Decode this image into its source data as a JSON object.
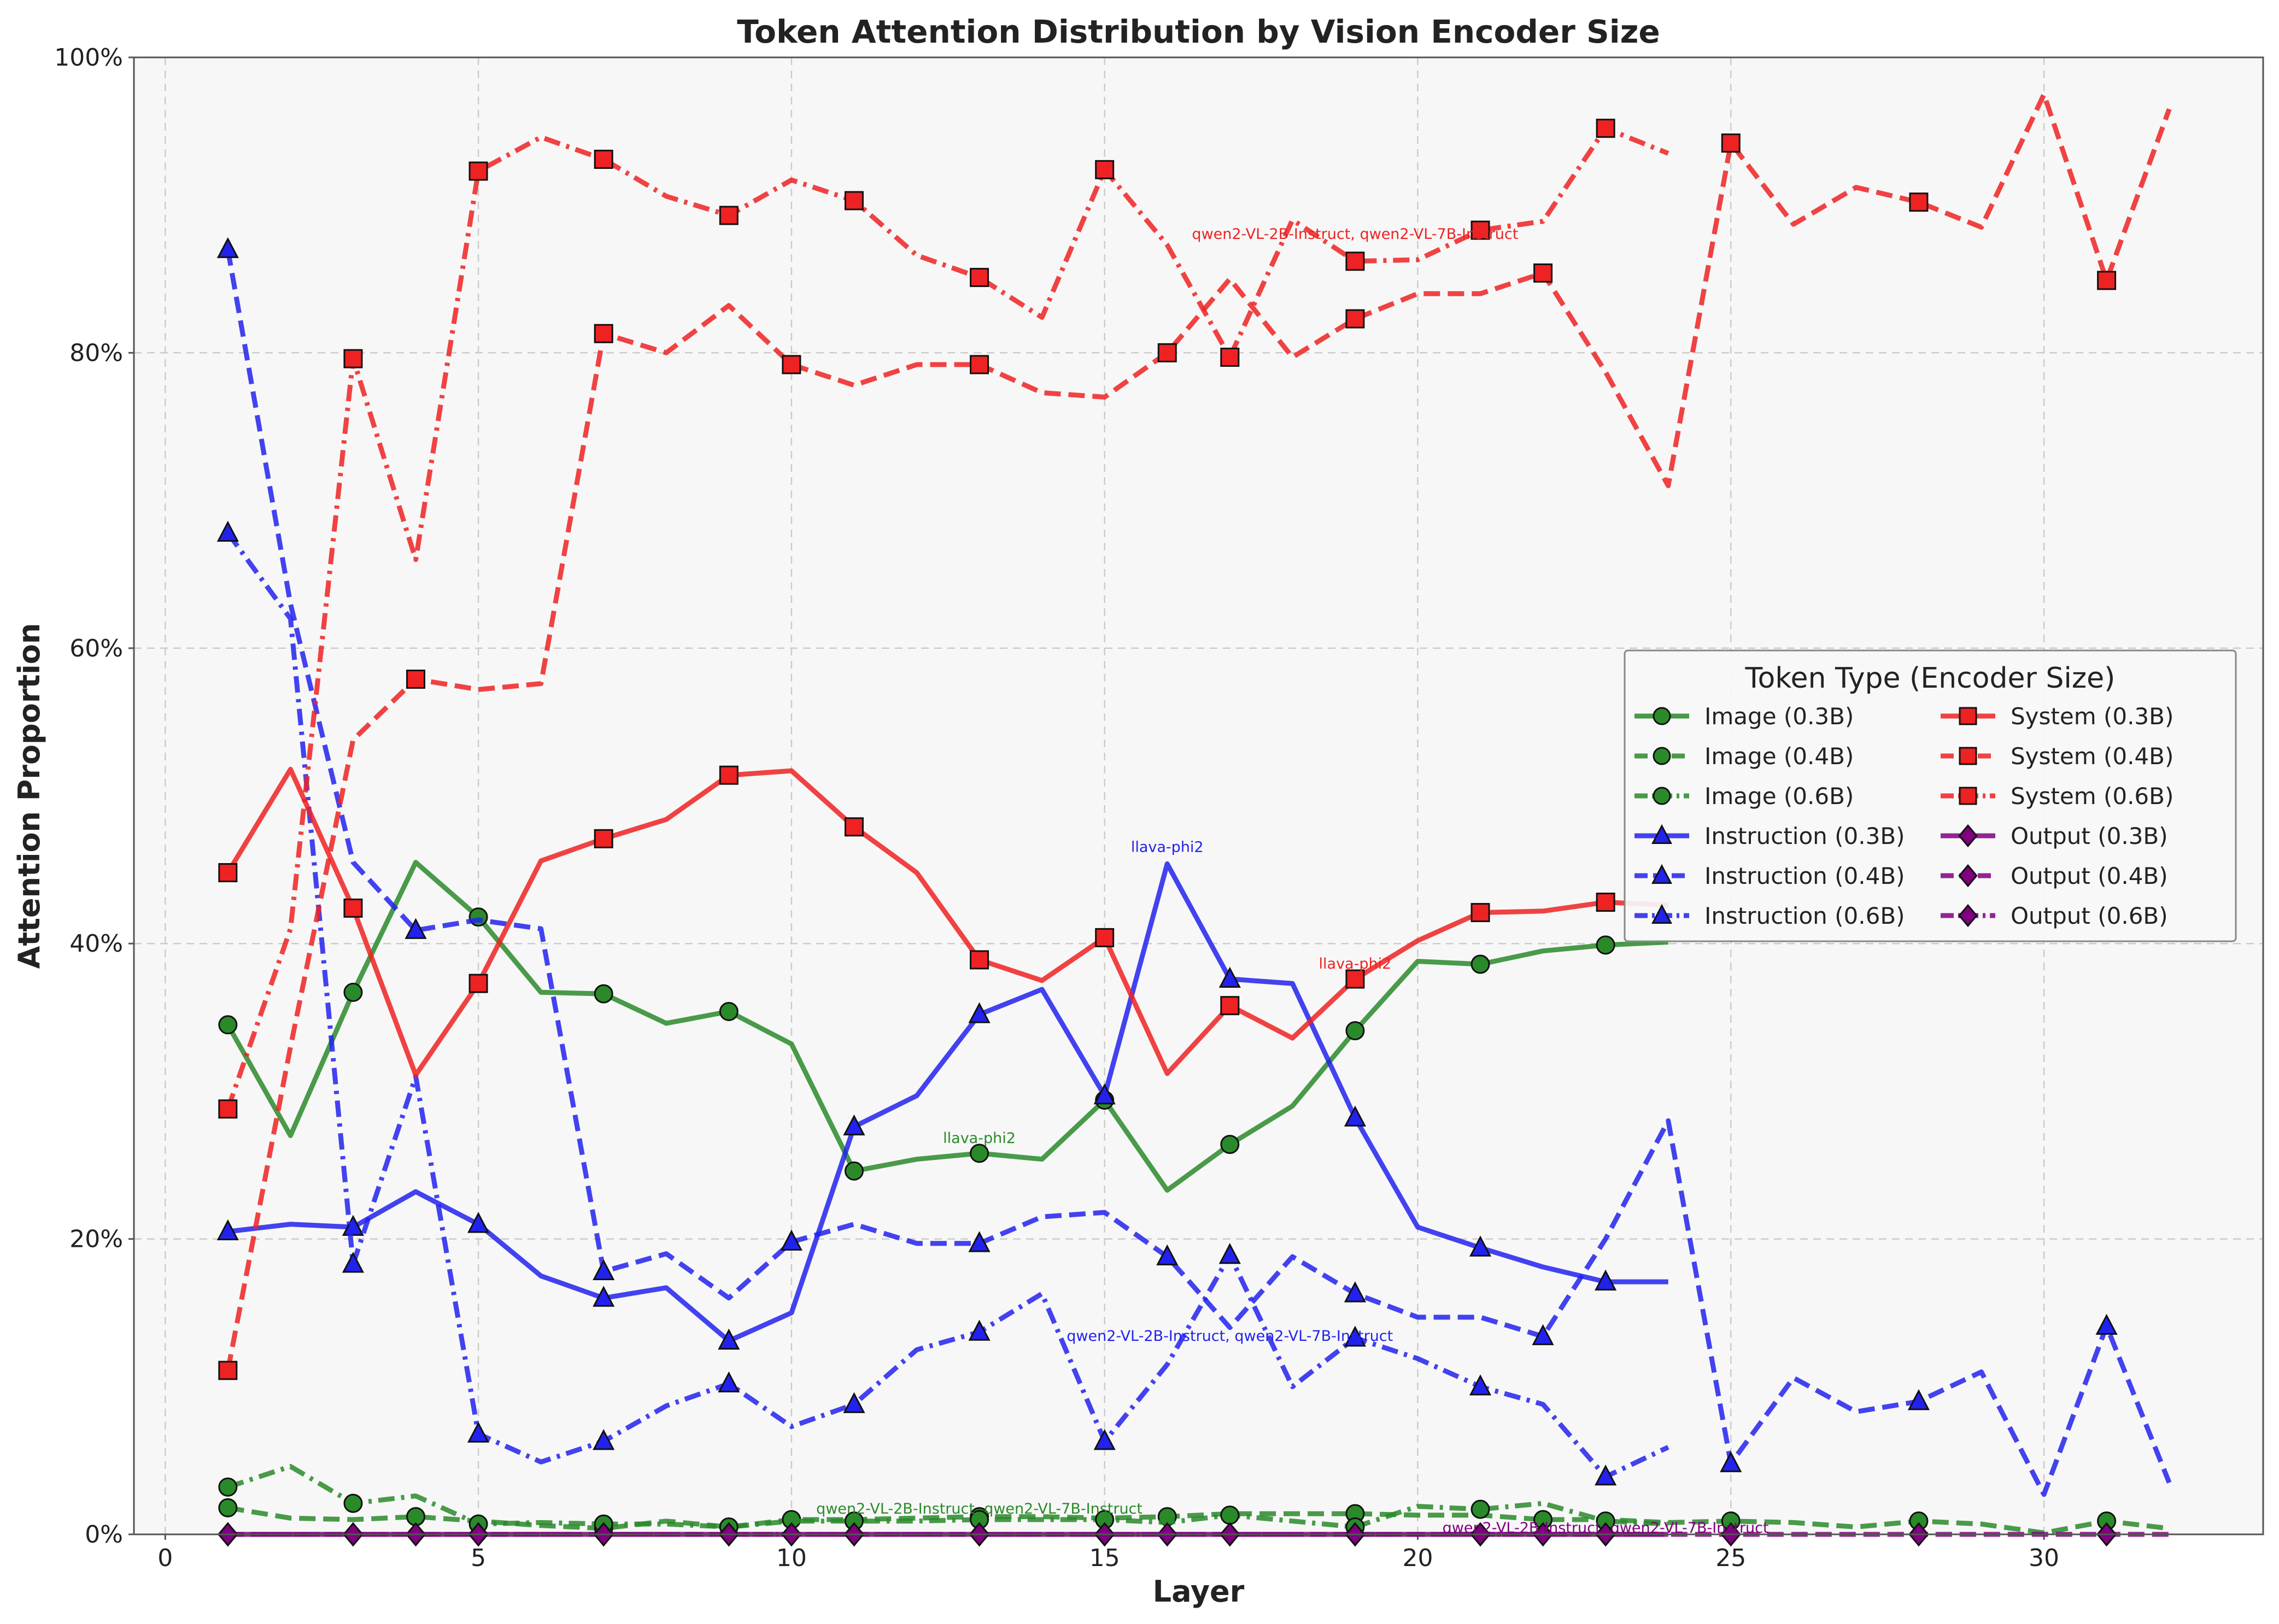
{
  "chart_data": {
    "type": "line",
    "title": "Token Attention Distribution by Vision Encoder Size",
    "xlabel": "Layer",
    "ylabel": "Attention Proportion",
    "xlim": [
      -0.5,
      33.5
    ],
    "ylim": [
      0,
      1
    ],
    "x_ticks": [
      0,
      5,
      10,
      15,
      20,
      25,
      30
    ],
    "y_ticks": [
      0,
      0.2,
      0.4,
      0.6,
      0.8,
      1.0
    ],
    "y_tick_labels": [
      "0%",
      "20%",
      "40%",
      "60%",
      "80%",
      "100%"
    ],
    "grid": true,
    "legend": {
      "title": "Token Type (Encoder Size)",
      "placement": "center-right",
      "columns": 2
    },
    "colors": {
      "Image": "#2a8a2a",
      "Instruction": "#2222ee",
      "System": "#ee2222",
      "Output": "#800080"
    },
    "series": [
      {
        "name": "Image (0.3B)",
        "token": "Image",
        "style": "solid",
        "marker": "circle",
        "x": [
          1,
          2,
          3,
          4,
          5,
          6,
          7,
          8,
          9,
          10,
          11,
          12,
          13,
          14,
          15,
          16,
          17,
          18,
          19,
          20,
          21,
          22,
          23,
          24
        ],
        "y": [
          0.345,
          0.27,
          0.367,
          0.455,
          0.418,
          0.367,
          0.366,
          0.346,
          0.354,
          0.332,
          0.246,
          0.254,
          0.258,
          0.254,
          0.294,
          0.233,
          0.264,
          0.29,
          0.341,
          0.388,
          0.386,
          0.395,
          0.399,
          0.401
        ],
        "marker_x": [
          1,
          3,
          5,
          7,
          9,
          11,
          13,
          15,
          17,
          19,
          21,
          23
        ]
      },
      {
        "name": "Image (0.4B)",
        "token": "Image",
        "style": "dash",
        "marker": "circle",
        "x": [
          1,
          2,
          3,
          4,
          5,
          6,
          7,
          8,
          9,
          10,
          11,
          12,
          13,
          14,
          15,
          16,
          17,
          18,
          19,
          20,
          21,
          22,
          23,
          24,
          25,
          26,
          27,
          28,
          29,
          30,
          31,
          32
        ],
        "y": [
          0.018,
          0.011,
          0.01,
          0.012,
          0.009,
          0.006,
          0.004,
          0.009,
          0.005,
          0.01,
          0.01,
          0.011,
          0.012,
          0.012,
          0.011,
          0.012,
          0.014,
          0.014,
          0.014,
          0.013,
          0.013,
          0.01,
          0.01,
          0.008,
          0.009,
          0.008,
          0.005,
          0.009,
          0.007,
          0.001,
          0.009,
          0.004
        ],
        "marker_x": [
          1,
          4,
          7,
          10,
          13,
          16,
          19,
          22,
          25,
          28,
          31
        ]
      },
      {
        "name": "Image (0.6B)",
        "token": "Image",
        "style": "dashdot",
        "marker": "circle",
        "x": [
          1,
          2,
          3,
          4,
          5,
          6,
          7,
          8,
          9,
          10,
          11,
          12,
          13,
          14,
          15,
          16,
          17,
          18,
          19,
          20,
          21,
          22,
          23,
          24
        ],
        "y": [
          0.032,
          0.046,
          0.021,
          0.026,
          0.007,
          0.008,
          0.007,
          0.007,
          0.005,
          0.009,
          0.009,
          0.009,
          0.01,
          0.01,
          0.01,
          0.008,
          0.013,
          0.009,
          0.005,
          0.019,
          0.017,
          0.021,
          0.009,
          0.007
        ],
        "marker_x": [
          1,
          3,
          5,
          7,
          9,
          11,
          13,
          15,
          17,
          19,
          21,
          23
        ]
      },
      {
        "name": "Instruction (0.3B)",
        "token": "Instruction",
        "style": "solid",
        "marker": "triangle",
        "x": [
          1,
          2,
          3,
          4,
          5,
          6,
          7,
          8,
          9,
          10,
          11,
          12,
          13,
          14,
          15,
          16,
          17,
          18,
          19,
          20,
          21,
          22,
          23,
          24
        ],
        "y": [
          0.205,
          0.21,
          0.208,
          0.232,
          0.21,
          0.175,
          0.16,
          0.167,
          0.131,
          0.15,
          0.276,
          0.297,
          0.352,
          0.369,
          0.297,
          0.454,
          0.376,
          0.373,
          0.282,
          0.208,
          0.194,
          0.181,
          0.171,
          0.171
        ],
        "marker_x": [
          1,
          3,
          5,
          7,
          9,
          11,
          13,
          15,
          17,
          19,
          21,
          23
        ]
      },
      {
        "name": "Instruction (0.4B)",
        "token": "Instruction",
        "style": "dash",
        "marker": "triangle",
        "x": [
          1,
          2,
          3,
          4,
          5,
          6,
          7,
          8,
          9,
          10,
          11,
          12,
          13,
          14,
          15,
          16,
          17,
          18,
          19,
          20,
          21,
          22,
          23,
          24,
          25,
          26,
          27,
          28,
          29,
          30,
          31,
          32
        ],
        "y": [
          0.87,
          0.63,
          0.455,
          0.409,
          0.416,
          0.41,
          0.178,
          0.19,
          0.16,
          0.198,
          0.21,
          0.197,
          0.197,
          0.215,
          0.218,
          0.188,
          0.14,
          0.188,
          0.163,
          0.147,
          0.147,
          0.134,
          0.2,
          0.28,
          0.048,
          0.106,
          0.083,
          0.09,
          0.11,
          0.027,
          0.141,
          0.035
        ],
        "marker_x": [
          1,
          4,
          7,
          10,
          13,
          16,
          19,
          22,
          25,
          28,
          31
        ]
      },
      {
        "name": "Instruction (0.6B)",
        "token": "Instruction",
        "style": "dashdot",
        "marker": "triangle",
        "x": [
          1,
          2,
          3,
          4,
          5,
          6,
          7,
          8,
          9,
          10,
          11,
          12,
          13,
          14,
          15,
          16,
          17,
          18,
          19,
          20,
          21,
          22,
          23,
          24
        ],
        "y": [
          0.678,
          0.62,
          0.183,
          0.31,
          0.068,
          0.049,
          0.063,
          0.087,
          0.102,
          0.073,
          0.088,
          0.125,
          0.137,
          0.163,
          0.063,
          0.115,
          0.189,
          0.1,
          0.133,
          0.119,
          0.1,
          0.088,
          0.039,
          0.059
        ],
        "marker_x": [
          1,
          3,
          5,
          7,
          9,
          11,
          13,
          15,
          17,
          19,
          21,
          23
        ]
      },
      {
        "name": "System (0.3B)",
        "token": "System",
        "style": "solid",
        "marker": "square",
        "x": [
          1,
          2,
          3,
          4,
          5,
          6,
          7,
          8,
          9,
          10,
          11,
          12,
          13,
          14,
          15,
          16,
          17,
          18,
          19,
          20,
          21,
          22,
          23,
          24
        ],
        "y": [
          0.448,
          0.518,
          0.424,
          0.311,
          0.373,
          0.456,
          0.471,
          0.484,
          0.514,
          0.517,
          0.479,
          0.448,
          0.389,
          0.375,
          0.404,
          0.312,
          0.358,
          0.336,
          0.376,
          0.402,
          0.421,
          0.422,
          0.428,
          0.426
        ],
        "marker_x": [
          1,
          3,
          5,
          7,
          9,
          11,
          13,
          15,
          17,
          19,
          21,
          23
        ]
      },
      {
        "name": "System (0.4B)",
        "token": "System",
        "style": "dash",
        "marker": "square",
        "x": [
          1,
          2,
          3,
          4,
          5,
          6,
          7,
          8,
          9,
          10,
          11,
          12,
          13,
          14,
          15,
          16,
          17,
          18,
          19,
          20,
          21,
          22,
          23,
          24,
          25,
          26,
          27,
          28,
          29,
          30,
          31,
          32
        ],
        "y": [
          0.111,
          0.33,
          0.538,
          0.579,
          0.572,
          0.576,
          0.813,
          0.8,
          0.832,
          0.792,
          0.778,
          0.792,
          0.792,
          0.773,
          0.77,
          0.8,
          0.85,
          0.797,
          0.823,
          0.84,
          0.84,
          0.854,
          0.787,
          0.71,
          0.942,
          0.887,
          0.912,
          0.902,
          0.885,
          0.975,
          0.849,
          0.965
        ],
        "marker_x": [
          1,
          4,
          7,
          10,
          13,
          16,
          19,
          22,
          25,
          28,
          31
        ]
      },
      {
        "name": "System (0.6B)",
        "token": "System",
        "style": "dashdot",
        "marker": "square",
        "x": [
          1,
          2,
          3,
          4,
          5,
          6,
          7,
          8,
          9,
          10,
          11,
          12,
          13,
          14,
          15,
          16,
          17,
          18,
          19,
          20,
          21,
          22,
          23,
          24
        ],
        "y": [
          0.288,
          0.41,
          0.796,
          0.66,
          0.923,
          0.946,
          0.931,
          0.906,
          0.893,
          0.917,
          0.903,
          0.866,
          0.851,
          0.824,
          0.924,
          0.873,
          0.797,
          0.89,
          0.862,
          0.863,
          0.883,
          0.889,
          0.952,
          0.935
        ],
        "marker_x": [
          1,
          3,
          5,
          7,
          9,
          11,
          13,
          15,
          17,
          19,
          21,
          23
        ]
      },
      {
        "name": "Output (0.3B)",
        "token": "Output",
        "style": "solid",
        "marker": "diamond",
        "x": [
          1,
          2,
          3,
          4,
          5,
          6,
          7,
          8,
          9,
          10,
          11,
          12,
          13,
          14,
          15,
          16,
          17,
          18,
          19,
          20,
          21,
          22,
          23,
          24
        ],
        "y": [
          0,
          0,
          0,
          0,
          0,
          0,
          0,
          0,
          0,
          0,
          0,
          0,
          0,
          0,
          0,
          0,
          0,
          0,
          0,
          0,
          0,
          0,
          0,
          0
        ],
        "marker_x": [
          1,
          3,
          5,
          7,
          9,
          11,
          13,
          15,
          17,
          19,
          21,
          23
        ]
      },
      {
        "name": "Output (0.4B)",
        "token": "Output",
        "style": "dash",
        "marker": "diamond",
        "x": [
          1,
          2,
          3,
          4,
          5,
          6,
          7,
          8,
          9,
          10,
          11,
          12,
          13,
          14,
          15,
          16,
          17,
          18,
          19,
          20,
          21,
          22,
          23,
          24,
          25,
          26,
          27,
          28,
          29,
          30,
          31,
          32
        ],
        "y": [
          0,
          0,
          0,
          0,
          0,
          0,
          0,
          0,
          0,
          0,
          0,
          0,
          0,
          0,
          0,
          0,
          0,
          0,
          0,
          0,
          0,
          0,
          0,
          0,
          0,
          0,
          0,
          0,
          0,
          0,
          0,
          0
        ],
        "marker_x": [
          1,
          4,
          7,
          10,
          13,
          16,
          19,
          22,
          25,
          28,
          31
        ]
      },
      {
        "name": "Output (0.6B)",
        "token": "Output",
        "style": "dashdot",
        "marker": "diamond",
        "x": [
          1,
          2,
          3,
          4,
          5,
          6,
          7,
          8,
          9,
          10,
          11,
          12,
          13,
          14,
          15,
          16,
          17,
          18,
          19,
          20,
          21,
          22,
          23,
          24
        ],
        "y": [
          0,
          0,
          0,
          0,
          0,
          0,
          0,
          0,
          0,
          0,
          0,
          0,
          0,
          0,
          0,
          0,
          0,
          0,
          0,
          0,
          0,
          0,
          0,
          0
        ],
        "marker_x": [
          1,
          3,
          5,
          7,
          9,
          11,
          13,
          15,
          17,
          19,
          21,
          23
        ]
      }
    ],
    "annotations": [
      {
        "text": "qwen2-VL-2B-Instruct, qwen2-VL-7B-Instruct",
        "token": "System",
        "x": 19,
        "y": 0.88
      },
      {
        "text": "llava-phi2",
        "token": "Instruction",
        "x": 16,
        "y": 0.465
      },
      {
        "text": "llava-phi2",
        "token": "System",
        "x": 19,
        "y": 0.386
      },
      {
        "text": "llava-phi2",
        "token": "Image",
        "x": 13,
        "y": 0.268
      },
      {
        "text": "qwen2-VL-2B-Instruct, qwen2-VL-7B-Instruct",
        "token": "Instruction",
        "x": 17,
        "y": 0.134
      },
      {
        "text": "qwen2-VL-2B-Instruct, qwen2-VL-7B-Instruct",
        "token": "Image",
        "x": 13,
        "y": 0.017
      },
      {
        "text": "qwen2-VL-2B-Instruct, qwen2-VL-7B-Instruct",
        "token": "Output",
        "x": 23,
        "y": 0.004
      }
    ]
  }
}
